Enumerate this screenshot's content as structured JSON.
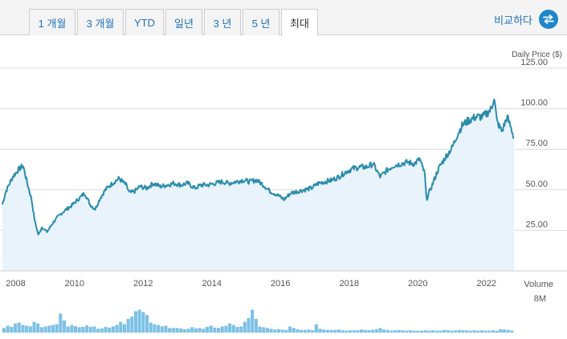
{
  "tabs": [
    {
      "label": "1 개월",
      "active": false
    },
    {
      "label": "3 개월",
      "active": false
    },
    {
      "label": "YTD",
      "active": false
    },
    {
      "label": "일년",
      "active": false
    },
    {
      "label": "3 년",
      "active": false
    },
    {
      "label": "5 년",
      "active": false
    },
    {
      "label": "최대",
      "active": true
    }
  ],
  "compare": {
    "label": "비교하다",
    "icon": "swap-arrows-icon"
  },
  "colors": {
    "line": "#2a8cab",
    "area": "#e8f3fb",
    "bars": "#7dc1e6",
    "accent": "#1f87c9"
  },
  "chart_data": {
    "type": "line",
    "ylabel": "Daily Price ($)",
    "yticks": [
      "25.00",
      "50.00",
      "75.00",
      "100.00",
      "125.00"
    ],
    "ylim": [
      0,
      125
    ],
    "xticks": [
      "2008",
      "2010",
      "2012",
      "2014",
      "2016",
      "2018",
      "2020",
      "2022"
    ],
    "xlim": [
      2007.9,
      2022.8
    ],
    "grid": true,
    "series": [
      {
        "x": [
          2007.9,
          2008.0,
          2008.2,
          2008.35,
          2008.5,
          2008.65,
          2008.75,
          2008.85,
          2008.95,
          2009.05,
          2009.2,
          2009.35,
          2009.5,
          2009.7,
          2009.9,
          2010.1,
          2010.3,
          2010.45,
          2010.6,
          2010.75,
          2010.9,
          2011.1,
          2011.3,
          2011.5,
          2011.6,
          2011.75,
          2011.9,
          2012.1,
          2012.3,
          2012.5,
          2012.7,
          2012.9,
          2013.1,
          2013.3,
          2013.5,
          2013.7,
          2013.9,
          2014.1,
          2014.3,
          2014.5,
          2014.7,
          2014.9,
          2015.1,
          2015.3,
          2015.5,
          2015.7,
          2015.9,
          2016.1,
          2016.3,
          2016.5,
          2016.7,
          2016.9,
          2017.1,
          2017.3,
          2017.5,
          2017.7,
          2017.9,
          2018.1,
          2018.3,
          2018.5,
          2018.7,
          2018.9,
          2019.1,
          2019.3,
          2019.5,
          2019.7,
          2019.9,
          2020.05,
          2020.2,
          2020.25,
          2020.4,
          2020.6,
          2020.8,
          2021.0,
          2021.15,
          2021.3,
          2021.5,
          2021.7,
          2021.9,
          2022.05,
          2022.15,
          2022.22,
          2022.3,
          2022.45,
          2022.6,
          2022.7,
          2022.8
        ],
        "y": [
          41,
          49,
          58,
          62,
          65,
          52,
          44,
          30,
          22,
          27,
          24,
          29,
          33,
          37,
          40,
          44,
          48,
          41,
          38,
          45,
          50,
          54,
          57,
          53,
          48,
          49,
          52,
          51,
          54,
          52,
          53,
          54,
          53,
          54,
          51,
          53,
          53,
          54,
          55,
          54,
          55,
          56,
          55,
          56,
          53,
          49,
          47,
          44,
          48,
          49,
          50,
          51,
          54,
          55,
          56,
          58,
          61,
          63,
          64,
          64,
          66,
          58,
          62,
          65,
          66,
          67,
          66,
          69,
          60,
          44,
          52,
          63,
          70,
          76,
          84,
          90,
          93,
          95,
          95,
          98,
          100,
          108,
          92,
          86,
          95,
          89,
          82
        ]
      }
    ],
    "volume": {
      "label": "Volume",
      "tick": "8M",
      "max": 8,
      "values": [
        1.2,
        1.8,
        1.5,
        2.4,
        2.6,
        2.0,
        1.8,
        1.6,
        2.8,
        2.4,
        1.4,
        1.6,
        1.8,
        2.0,
        2.2,
        5.0,
        3.2,
        1.6,
        2.0,
        1.7,
        1.4,
        1.5,
        1.9,
        1.5,
        1.6,
        1.0,
        1.1,
        1.5,
        1.3,
        1.6,
        2.0,
        2.8,
        2.2,
        3.6,
        4.2,
        5.6,
        6.0,
        5.4,
        4.6,
        2.6,
        2.2,
        2.0,
        1.6,
        1.8,
        1.2,
        1.2,
        1.2,
        1.1,
        0.9,
        1.0,
        1.4,
        1.1,
        1.2,
        1.0,
        1.5,
        1.8,
        1.3,
        1.2,
        1.6,
        1.8,
        2.4,
        2.0,
        1.5,
        1.6,
        2.8,
        3.8,
        6.0,
        3.6,
        1.6,
        1.4,
        1.2,
        1.0,
        0.8,
        0.9,
        0.8,
        0.7,
        1.6,
        1.2,
        0.9,
        0.7,
        0.7,
        0.8,
        0.6,
        2.2,
        1.0,
        0.8,
        0.7,
        0.7,
        0.7,
        0.8,
        0.6,
        0.5,
        0.6,
        0.6,
        0.6,
        0.8,
        0.7,
        0.6,
        0.7,
        0.9,
        1.2,
        0.8,
        0.7,
        0.5,
        0.6,
        0.7,
        0.6,
        0.5,
        0.6,
        0.5,
        0.5,
        0.5,
        0.6,
        0.5,
        0.6,
        0.5,
        0.5,
        0.7,
        0.6,
        0.5,
        0.6,
        0.7,
        0.6,
        0.6,
        0.5,
        0.6,
        0.5,
        0.6,
        0.5,
        0.5,
        0.6,
        0.5,
        0.9,
        0.8,
        0.7,
        0.5
      ]
    }
  }
}
